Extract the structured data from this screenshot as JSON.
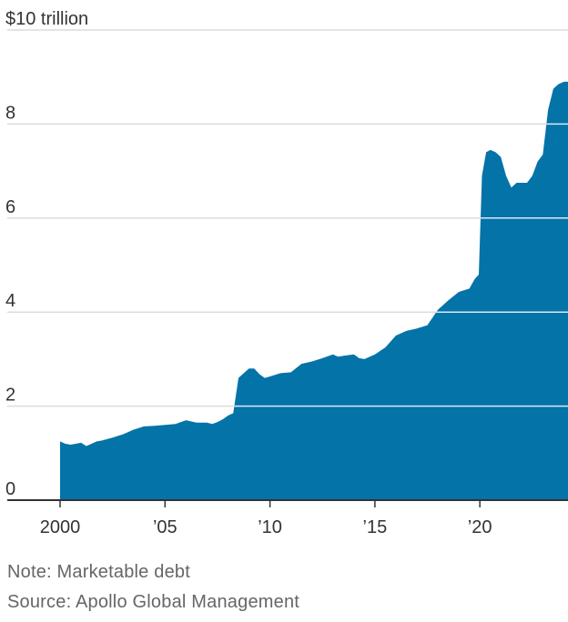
{
  "chart_data": {
    "type": "area",
    "title": "",
    "xlabel": "",
    "ylabel": "",
    "y_unit_label": "$10 trillion",
    "ylim": [
      0,
      10
    ],
    "xlim": [
      2000,
      2024.2
    ],
    "y_ticks": [
      {
        "value": 10,
        "label": "$10 trillion"
      },
      {
        "value": 8,
        "label": "8"
      },
      {
        "value": 6,
        "label": "6"
      },
      {
        "value": 4,
        "label": "4"
      },
      {
        "value": 2,
        "label": "2"
      },
      {
        "value": 0,
        "label": "0"
      }
    ],
    "x_ticks": [
      {
        "value": 2000,
        "label": "2000"
      },
      {
        "value": 2005,
        "label": "’05"
      },
      {
        "value": 2010,
        "label": "’10"
      },
      {
        "value": 2015,
        "label": "’15"
      },
      {
        "value": 2020,
        "label": "’20"
      }
    ],
    "grid": true,
    "fill_color": "#0473a8",
    "series": [
      {
        "x": [
          2000.0,
          2000.25,
          2000.5,
          2000.75,
          2001.0,
          2001.25,
          2001.5,
          2001.75,
          2002.0,
          2002.5,
          2003.0,
          2003.5,
          2004.0,
          2004.5,
          2005.0,
          2005.5,
          2006.0,
          2006.5,
          2007.0,
          2007.25,
          2007.5,
          2007.75,
          2008.0,
          2008.25,
          2008.5,
          2008.75,
          2009.0,
          2009.25,
          2009.5,
          2009.75,
          2010.0,
          2010.5,
          2011.0,
          2011.5,
          2012.0,
          2012.5,
          2013.0,
          2013.25,
          2013.5,
          2014.0,
          2014.25,
          2014.5,
          2015.0,
          2015.5,
          2016.0,
          2016.5,
          2017.0,
          2017.5,
          2018.0,
          2018.5,
          2019.0,
          2019.5,
          2019.75,
          2019.95,
          2020.1,
          2020.3,
          2020.5,
          2020.75,
          2021.0,
          2021.25,
          2021.5,
          2021.75,
          2022.0,
          2022.25,
          2022.5,
          2022.75,
          2023.0,
          2023.25,
          2023.5,
          2023.75,
          2024.0,
          2024.2
        ],
        "values": [
          1.25,
          1.2,
          1.18,
          1.2,
          1.22,
          1.15,
          1.2,
          1.25,
          1.27,
          1.33,
          1.4,
          1.5,
          1.57,
          1.58,
          1.6,
          1.62,
          1.7,
          1.65,
          1.65,
          1.62,
          1.66,
          1.72,
          1.8,
          1.85,
          2.6,
          2.7,
          2.8,
          2.8,
          2.68,
          2.6,
          2.63,
          2.7,
          2.72,
          2.9,
          2.95,
          3.02,
          3.1,
          3.05,
          3.07,
          3.1,
          3.02,
          3.0,
          3.1,
          3.25,
          3.5,
          3.6,
          3.65,
          3.72,
          4.05,
          4.25,
          4.43,
          4.5,
          4.7,
          4.8,
          6.9,
          7.4,
          7.45,
          7.4,
          7.3,
          6.9,
          6.65,
          6.75,
          6.75,
          6.75,
          6.9,
          7.2,
          7.35,
          8.3,
          8.75,
          8.85,
          8.9,
          8.9
        ]
      }
    ]
  },
  "footnotes": {
    "note": "Note: Marketable debt",
    "source": "Source: Apollo Global Management"
  }
}
